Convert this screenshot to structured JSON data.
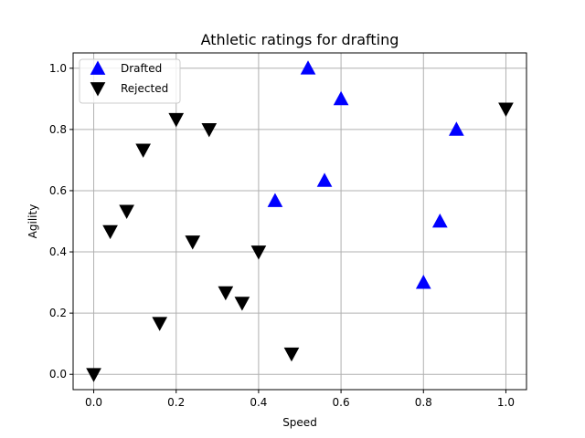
{
  "chart_data": {
    "type": "scatter",
    "title": "Athletic ratings for drafting",
    "xlabel": "Speed",
    "ylabel": "Agility",
    "xlim": [
      -0.05,
      1.05
    ],
    "ylim": [
      -0.05,
      1.05
    ],
    "xticks": [
      "0.0",
      "0.2",
      "0.4",
      "0.6",
      "0.8",
      "1.0"
    ],
    "yticks": [
      "0.0",
      "0.2",
      "0.4",
      "0.6",
      "0.8",
      "1.0"
    ],
    "grid": true,
    "legend_position": "top-left",
    "series": [
      {
        "name": "Drafted",
        "marker": "triangle-up",
        "color": "#0000ff",
        "points": [
          {
            "x": 0.52,
            "y": 1.0
          },
          {
            "x": 0.6,
            "y": 0.9
          },
          {
            "x": 0.88,
            "y": 0.8
          },
          {
            "x": 0.56,
            "y": 0.633
          },
          {
            "x": 0.44,
            "y": 0.567
          },
          {
            "x": 0.84,
            "y": 0.5
          },
          {
            "x": 0.8,
            "y": 0.3
          }
        ]
      },
      {
        "name": "Rejected",
        "marker": "triangle-down",
        "color": "#000000",
        "points": [
          {
            "x": 0.0,
            "y": 0.0
          },
          {
            "x": 0.04,
            "y": 0.467
          },
          {
            "x": 0.08,
            "y": 0.533
          },
          {
            "x": 0.12,
            "y": 0.733
          },
          {
            "x": 0.16,
            "y": 0.167
          },
          {
            "x": 0.2,
            "y": 0.833
          },
          {
            "x": 0.24,
            "y": 0.433
          },
          {
            "x": 0.28,
            "y": 0.8
          },
          {
            "x": 0.32,
            "y": 0.267
          },
          {
            "x": 0.36,
            "y": 0.233
          },
          {
            "x": 0.4,
            "y": 0.4
          },
          {
            "x": 0.48,
            "y": 0.067
          },
          {
            "x": 1.0,
            "y": 0.867
          }
        ]
      }
    ]
  }
}
